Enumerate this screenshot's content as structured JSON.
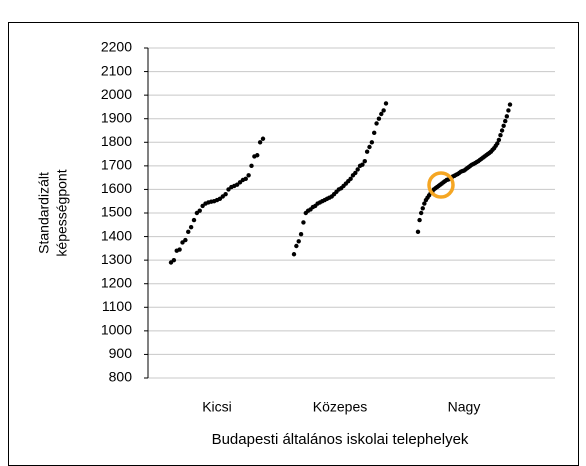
{
  "chart_data": {
    "type": "strip",
    "ylabel": [
      "Standardizált",
      "képességpont"
    ],
    "xlabel": "Budapesti általános iskolai telephelyek",
    "categories": [
      "Kicsi",
      "Közepes",
      "Nagy"
    ],
    "values": [
      [
        1290,
        1300,
        1340,
        1345,
        1375,
        1385,
        1420,
        1440,
        1470,
        1500,
        1510,
        1530,
        1540,
        1545,
        1548,
        1550,
        1555,
        1560,
        1570,
        1580,
        1600,
        1610,
        1615,
        1620,
        1630,
        1640,
        1645,
        1660,
        1700,
        1740,
        1745,
        1800,
        1815
      ],
      [
        1325,
        1360,
        1380,
        1410,
        1460,
        1500,
        1510,
        1515,
        1525,
        1530,
        1540,
        1545,
        1550,
        1555,
        1560,
        1565,
        1570,
        1580,
        1590,
        1600,
        1605,
        1615,
        1625,
        1635,
        1645,
        1660,
        1670,
        1685,
        1700,
        1705,
        1720,
        1760,
        1780,
        1800,
        1840,
        1880,
        1900,
        1920,
        1935,
        1965
      ],
      [
        1420,
        1470,
        1500,
        1520,
        1540,
        1555,
        1565,
        1575,
        1585,
        1590,
        1600,
        1605,
        1610,
        1615,
        1620,
        1625,
        1630,
        1635,
        1640,
        1642,
        1645,
        1650,
        1655,
        1658,
        1662,
        1665,
        1670,
        1675,
        1678,
        1680,
        1685,
        1690,
        1695,
        1700,
        1705,
        1708,
        1712,
        1716,
        1720,
        1725,
        1730,
        1735,
        1740,
        1745,
        1750,
        1755,
        1760,
        1768,
        1775,
        1785,
        1795,
        1810,
        1830,
        1850,
        1870,
        1890,
        1910,
        1935,
        1960
      ]
    ],
    "color": "#000000",
    "ylim": [
      800,
      2200
    ],
    "yticks": [
      800,
      900,
      1000,
      1100,
      1200,
      1300,
      1400,
      1500,
      1600,
      1700,
      1800,
      1900,
      2000,
      2100,
      2200
    ],
    "grid": true
  }
}
